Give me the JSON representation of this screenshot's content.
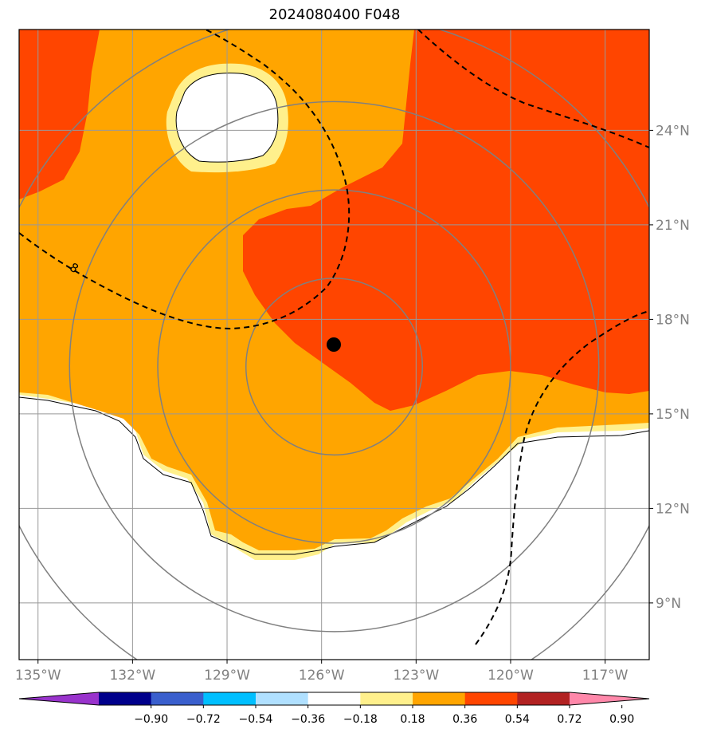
{
  "chart_data": {
    "type": "map-contour",
    "title": "2024080400 F048",
    "x_ticks": [
      "135°W",
      "132°W",
      "129°W",
      "126°W",
      "123°W",
      "120°W",
      "117°W"
    ],
    "x_tick_values": [
      -135,
      -132,
      -129,
      -126,
      -123,
      -120,
      -117
    ],
    "y_ticks": [
      "9°N",
      "12°N",
      "15°N",
      "18°N",
      "21°N",
      "24°N"
    ],
    "y_tick_values": [
      9,
      12,
      15,
      18,
      21,
      24
    ],
    "lon_range": [
      -135.6,
      -115.6
    ],
    "lat_range": [
      7.2,
      27.2
    ],
    "center": {
      "lon": -125.6,
      "lat": 16.5
    },
    "range_rings_deg": [
      2.8,
      5.6,
      8.4,
      11.2
    ],
    "contour_label": "8",
    "grid": true,
    "colorbar": {
      "ticks": [
        "−0.90",
        "−0.72",
        "−0.54",
        "−0.36",
        "−0.18",
        "0.18",
        "0.36",
        "0.54",
        "0.72",
        "0.90"
      ],
      "colors": [
        "#9933cc",
        "#00008b",
        "#3a5fcd",
        "#00bfff",
        "#b0e0ff",
        "#ffffff",
        "#fff08c",
        "#ffa500",
        "#ff4500",
        "#b22222",
        "#ff88aa"
      ],
      "extend": "both"
    },
    "legend_colors": {
      "high": "#ff4500",
      "mid": "#ffa500",
      "low": "#fff08c",
      "none": "#ffffff"
    }
  }
}
